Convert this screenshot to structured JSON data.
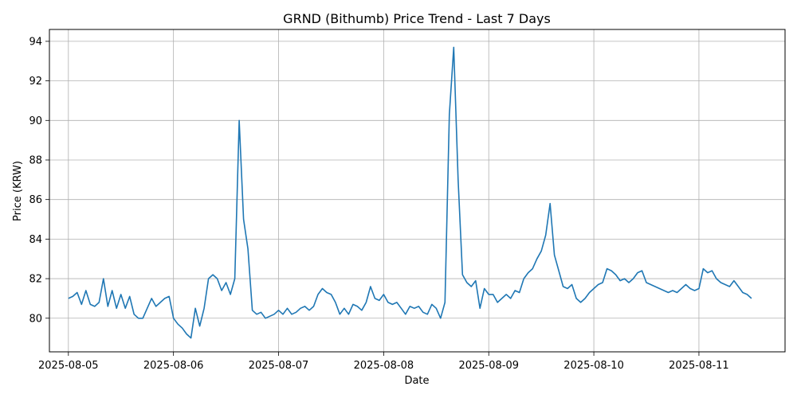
{
  "chart_data": {
    "type": "line",
    "title": "GRND (Bithumb) Price Trend - Last 7 Days",
    "xlabel": "Date",
    "ylabel": "Price (KRW)",
    "x_ticks": [
      "2025-08-05",
      "2025-08-06",
      "2025-08-07",
      "2025-08-08",
      "2025-08-09",
      "2025-08-10",
      "2025-08-11"
    ],
    "y_ticks": [
      80,
      82,
      84,
      86,
      88,
      90,
      92,
      94
    ],
    "xlim": [
      "2025-08-04T19:40",
      "2025-08-11T19:40"
    ],
    "ylim": [
      78.3,
      94.6
    ],
    "grid": true,
    "line_color": "#1f77b4",
    "series": [
      {
        "x": [
          "2025-08-05T00:00",
          "2025-08-05T01:00",
          "2025-08-05T02:00",
          "2025-08-05T03:00",
          "2025-08-05T04:00",
          "2025-08-05T05:00",
          "2025-08-05T06:00",
          "2025-08-05T07:00",
          "2025-08-05T08:00",
          "2025-08-05T09:00",
          "2025-08-05T10:00",
          "2025-08-05T11:00",
          "2025-08-05T12:00",
          "2025-08-05T13:00",
          "2025-08-05T14:00",
          "2025-08-05T15:00",
          "2025-08-05T16:00",
          "2025-08-05T17:00",
          "2025-08-05T18:00",
          "2025-08-05T19:00",
          "2025-08-05T20:00",
          "2025-08-05T21:00",
          "2025-08-05T22:00",
          "2025-08-05T23:00",
          "2025-08-06T00:00",
          "2025-08-06T01:00",
          "2025-08-06T02:00",
          "2025-08-06T03:00",
          "2025-08-06T04:00",
          "2025-08-06T05:00",
          "2025-08-06T06:00",
          "2025-08-06T07:00",
          "2025-08-06T08:00",
          "2025-08-06T09:00",
          "2025-08-06T10:00",
          "2025-08-06T11:00",
          "2025-08-06T12:00",
          "2025-08-06T13:00",
          "2025-08-06T14:00",
          "2025-08-06T15:00",
          "2025-08-06T16:00",
          "2025-08-06T17:00",
          "2025-08-06T18:00",
          "2025-08-06T19:00",
          "2025-08-06T20:00",
          "2025-08-06T21:00",
          "2025-08-06T22:00",
          "2025-08-06T23:00",
          "2025-08-07T00:00",
          "2025-08-07T01:00",
          "2025-08-07T02:00",
          "2025-08-07T03:00",
          "2025-08-07T04:00",
          "2025-08-07T05:00",
          "2025-08-07T06:00",
          "2025-08-07T07:00",
          "2025-08-07T08:00",
          "2025-08-07T09:00",
          "2025-08-07T10:00",
          "2025-08-07T11:00",
          "2025-08-07T12:00",
          "2025-08-07T13:00",
          "2025-08-07T14:00",
          "2025-08-07T15:00",
          "2025-08-07T16:00",
          "2025-08-07T17:00",
          "2025-08-07T18:00",
          "2025-08-07T19:00",
          "2025-08-07T20:00",
          "2025-08-07T21:00",
          "2025-08-07T22:00",
          "2025-08-07T23:00",
          "2025-08-08T00:00",
          "2025-08-08T01:00",
          "2025-08-08T02:00",
          "2025-08-08T03:00",
          "2025-08-08T04:00",
          "2025-08-08T05:00",
          "2025-08-08T06:00",
          "2025-08-08T07:00",
          "2025-08-08T08:00",
          "2025-08-08T09:00",
          "2025-08-08T10:00",
          "2025-08-08T11:00",
          "2025-08-08T12:00",
          "2025-08-08T13:00",
          "2025-08-08T14:00",
          "2025-08-08T15:00",
          "2025-08-08T16:00",
          "2025-08-08T17:00",
          "2025-08-08T18:00",
          "2025-08-08T19:00",
          "2025-08-08T20:00",
          "2025-08-08T21:00",
          "2025-08-08T22:00",
          "2025-08-08T23:00",
          "2025-08-09T00:00",
          "2025-08-09T01:00",
          "2025-08-09T02:00",
          "2025-08-09T03:00",
          "2025-08-09T04:00",
          "2025-08-09T05:00",
          "2025-08-09T06:00",
          "2025-08-09T07:00",
          "2025-08-09T08:00",
          "2025-08-09T09:00",
          "2025-08-09T10:00",
          "2025-08-09T11:00",
          "2025-08-09T12:00",
          "2025-08-09T13:00",
          "2025-08-09T14:00",
          "2025-08-09T15:00",
          "2025-08-09T16:00",
          "2025-08-09T17:00",
          "2025-08-09T18:00",
          "2025-08-09T19:00",
          "2025-08-09T20:00",
          "2025-08-09T21:00",
          "2025-08-09T22:00",
          "2025-08-09T23:00",
          "2025-08-10T00:00",
          "2025-08-10T01:00",
          "2025-08-10T02:00",
          "2025-08-10T03:00",
          "2025-08-10T04:00",
          "2025-08-10T05:00",
          "2025-08-10T06:00",
          "2025-08-10T07:00",
          "2025-08-10T08:00",
          "2025-08-10T09:00",
          "2025-08-10T10:00",
          "2025-08-10T11:00",
          "2025-08-10T12:00",
          "2025-08-10T13:00",
          "2025-08-10T14:00",
          "2025-08-10T15:00",
          "2025-08-10T16:00",
          "2025-08-10T17:00",
          "2025-08-10T18:00",
          "2025-08-10T19:00",
          "2025-08-10T20:00",
          "2025-08-10T21:00",
          "2025-08-10T22:00",
          "2025-08-10T23:00",
          "2025-08-11T00:00",
          "2025-08-11T01:00",
          "2025-08-11T02:00",
          "2025-08-11T03:00",
          "2025-08-11T04:00",
          "2025-08-11T05:00",
          "2025-08-11T06:00",
          "2025-08-11T07:00",
          "2025-08-11T08:00",
          "2025-08-11T09:00",
          "2025-08-11T10:00",
          "2025-08-11T11:00",
          "2025-08-11T12:00"
        ],
        "y": [
          81.0,
          81.1,
          81.3,
          80.7,
          81.4,
          80.7,
          80.6,
          80.8,
          82.0,
          80.6,
          81.4,
          80.5,
          81.2,
          80.5,
          81.1,
          80.2,
          80.0,
          80.0,
          80.5,
          81.0,
          80.6,
          80.8,
          81.0,
          81.1,
          80.0,
          79.7,
          79.5,
          79.2,
          79.0,
          80.5,
          79.6,
          80.5,
          82.0,
          82.2,
          82.0,
          81.4,
          81.8,
          81.2,
          82.0,
          90.0,
          85.0,
          83.5,
          80.4,
          80.2,
          80.3,
          80.0,
          80.1,
          80.2,
          80.4,
          80.2,
          80.5,
          80.2,
          80.3,
          80.5,
          80.6,
          80.4,
          80.6,
          81.2,
          81.5,
          81.3,
          81.2,
          80.8,
          80.2,
          80.5,
          80.2,
          80.7,
          80.6,
          80.4,
          80.8,
          81.6,
          81.0,
          80.9,
          81.2,
          80.8,
          80.7,
          80.8,
          80.5,
          80.2,
          80.6,
          80.5,
          80.6,
          80.3,
          80.2,
          80.7,
          80.5,
          80.0,
          80.8,
          90.3,
          93.7,
          87.0,
          82.2,
          81.8,
          81.6,
          81.9,
          80.5,
          81.5,
          81.2,
          81.2,
          80.8,
          81.0,
          81.2,
          81.0,
          81.4,
          81.3,
          82.0,
          82.3,
          82.5,
          83.0,
          83.4,
          84.2,
          85.8,
          83.2,
          82.4,
          81.6,
          81.5,
          81.7,
          81.0,
          80.8,
          81.0,
          81.3,
          81.5,
          81.7,
          81.8,
          82.5,
          82.4,
          82.2,
          81.9,
          82.0,
          81.8,
          82.0,
          82.3,
          82.4,
          81.8,
          81.7,
          81.6,
          81.5,
          81.4,
          81.3,
          81.4,
          81.3,
          81.5,
          81.7,
          81.5,
          81.4,
          81.5,
          82.5,
          82.3,
          82.4,
          82.0,
          81.8,
          81.7,
          81.6,
          81.9,
          81.6,
          81.3,
          81.2,
          81.0
        ]
      }
    ]
  }
}
